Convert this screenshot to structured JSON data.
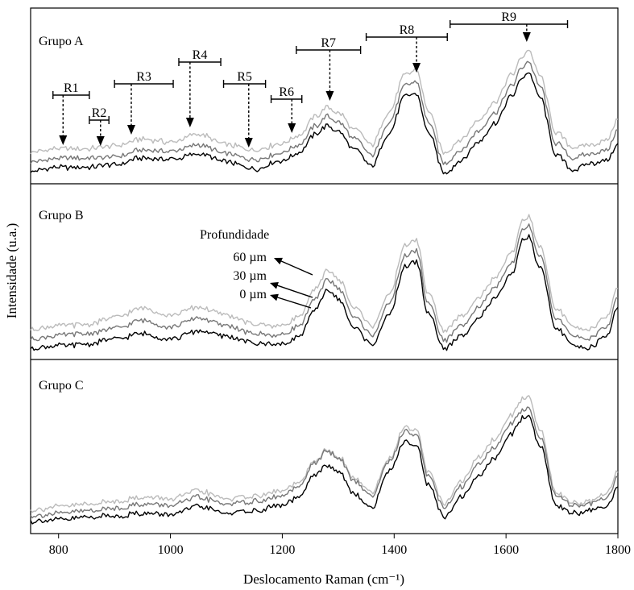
{
  "figure": {
    "xlabel": "Deslocamento Raman (cm⁻¹)",
    "ylabel": "Intensidade (u.a.)",
    "depth_title": "Profundidade",
    "depth_labels": [
      "60 µm",
      "30 µm",
      "0 µm"
    ],
    "colors": {
      "0um": "#000000",
      "30um": "#777777",
      "60um": "#bbbbbb",
      "axes": "#000000"
    }
  },
  "chart_data": {
    "type": "line",
    "xlabel": "Deslocamento Raman (cm⁻¹)",
    "ylabel": "Intensidade (u.a.)",
    "xlim": [
      750,
      1800
    ],
    "xticks": [
      800,
      1000,
      1200,
      1400,
      1600,
      1800
    ],
    "ylim": [
      0,
      1
    ],
    "grid": false,
    "legend": "annotated arrows, center-left of Grupo B panel",
    "series_names": [
      "0 µm",
      "30 µm",
      "60 µm"
    ],
    "panels": [
      {
        "name": "Grupo A",
        "x": [
          750,
          800,
          850,
          900,
          950,
          1000,
          1050,
          1100,
          1150,
          1200,
          1230,
          1260,
          1280,
          1300,
          1330,
          1360,
          1390,
          1420,
          1440,
          1460,
          1490,
          1520,
          1550,
          1580,
          1610,
          1630,
          1640,
          1660,
          1690,
          1720,
          1750,
          1780,
          1800
        ],
        "series": [
          {
            "name": "0 µm",
            "values": [
              0.02,
              0.05,
              0.05,
              0.07,
              0.12,
              0.11,
              0.15,
              0.09,
              0.04,
              0.1,
              0.16,
              0.3,
              0.36,
              0.32,
              0.18,
              0.06,
              0.3,
              0.58,
              0.6,
              0.32,
              0.01,
              0.1,
              0.24,
              0.38,
              0.58,
              0.72,
              0.76,
              0.58,
              0.14,
              0.03,
              0.08,
              0.1,
              0.22
            ]
          },
          {
            "name": "30 µm",
            "values": [
              0.09,
              0.12,
              0.12,
              0.13,
              0.18,
              0.17,
              0.22,
              0.15,
              0.11,
              0.16,
              0.22,
              0.36,
              0.43,
              0.39,
              0.26,
              0.14,
              0.38,
              0.66,
              0.69,
              0.4,
              0.08,
              0.18,
              0.32,
              0.46,
              0.66,
              0.8,
              0.84,
              0.66,
              0.23,
              0.12,
              0.15,
              0.18,
              0.33
            ]
          },
          {
            "name": "60 µm",
            "values": [
              0.16,
              0.19,
              0.19,
              0.21,
              0.26,
              0.24,
              0.3,
              0.22,
              0.18,
              0.23,
              0.29,
              0.43,
              0.5,
              0.46,
              0.33,
              0.22,
              0.46,
              0.74,
              0.78,
              0.48,
              0.16,
              0.26,
              0.4,
              0.54,
              0.74,
              0.88,
              0.93,
              0.74,
              0.31,
              0.2,
              0.22,
              0.25,
              0.41
            ]
          }
        ],
        "regions": [
          {
            "name": "R1",
            "from": 790,
            "to": 855,
            "peak": 808
          },
          {
            "name": "R2",
            "from": 855,
            "to": 890,
            "peak": 875
          },
          {
            "name": "R3",
            "from": 900,
            "to": 1005,
            "peak": 930
          },
          {
            "name": "R4",
            "from": 1015,
            "to": 1090,
            "peak": 1035
          },
          {
            "name": "R5",
            "from": 1095,
            "to": 1170,
            "peak": 1140
          },
          {
            "name": "R6",
            "from": 1180,
            "to": 1235,
            "peak": 1217
          },
          {
            "name": "R7",
            "from": 1225,
            "to": 1340,
            "peak": 1285
          },
          {
            "name": "R8",
            "from": 1350,
            "to": 1495,
            "peak": 1440
          },
          {
            "name": "R9",
            "from": 1500,
            "to": 1710,
            "peak": 1637
          }
        ]
      },
      {
        "name": "Grupo B",
        "x": [
          750,
          800,
          850,
          900,
          950,
          1000,
          1050,
          1100,
          1150,
          1200,
          1230,
          1260,
          1280,
          1300,
          1330,
          1360,
          1390,
          1420,
          1440,
          1460,
          1490,
          1520,
          1550,
          1580,
          1610,
          1630,
          1640,
          1660,
          1690,
          1720,
          1750,
          1780,
          1800
        ],
        "series": [
          {
            "name": "0 µm",
            "values": [
              0.01,
              0.03,
              0.04,
              0.08,
              0.12,
              0.08,
              0.14,
              0.1,
              0.05,
              0.04,
              0.1,
              0.3,
              0.45,
              0.38,
              0.16,
              0.04,
              0.25,
              0.62,
              0.66,
              0.28,
              0.01,
              0.1,
              0.24,
              0.38,
              0.56,
              0.82,
              0.84,
              0.62,
              0.16,
              0.03,
              0.02,
              0.1,
              0.32
            ]
          },
          {
            "name": "30 µm",
            "values": [
              0.08,
              0.11,
              0.12,
              0.16,
              0.22,
              0.17,
              0.24,
              0.18,
              0.12,
              0.11,
              0.18,
              0.38,
              0.53,
              0.46,
              0.24,
              0.11,
              0.33,
              0.7,
              0.74,
              0.36,
              0.07,
              0.18,
              0.32,
              0.46,
              0.64,
              0.9,
              0.92,
              0.7,
              0.24,
              0.1,
              0.09,
              0.17,
              0.4
            ]
          },
          {
            "name": "60 µm",
            "values": [
              0.15,
              0.18,
              0.19,
              0.24,
              0.31,
              0.26,
              0.32,
              0.26,
              0.19,
              0.18,
              0.25,
              0.45,
              0.6,
              0.53,
              0.31,
              0.18,
              0.4,
              0.78,
              0.82,
              0.43,
              0.14,
              0.25,
              0.39,
              0.53,
              0.72,
              0.97,
              0.99,
              0.77,
              0.31,
              0.17,
              0.16,
              0.24,
              0.47
            ]
          }
        ]
      },
      {
        "name": "Grupo C",
        "x": [
          750,
          800,
          850,
          900,
          950,
          1000,
          1050,
          1100,
          1150,
          1200,
          1230,
          1260,
          1280,
          1300,
          1330,
          1360,
          1390,
          1420,
          1440,
          1460,
          1490,
          1520,
          1550,
          1580,
          1610,
          1630,
          1640,
          1660,
          1690,
          1720,
          1750,
          1780,
          1800
        ],
        "series": [
          {
            "name": "0 µm",
            "values": [
              0.02,
              0.03,
              0.05,
              0.06,
              0.08,
              0.07,
              0.13,
              0.08,
              0.1,
              0.14,
              0.2,
              0.38,
              0.44,
              0.4,
              0.22,
              0.12,
              0.4,
              0.62,
              0.6,
              0.3,
              0.05,
              0.2,
              0.36,
              0.5,
              0.68,
              0.8,
              0.82,
              0.6,
              0.14,
              0.08,
              0.1,
              0.12,
              0.28
            ]
          },
          {
            "name": "30 µm",
            "values": [
              0.06,
              0.08,
              0.1,
              0.12,
              0.15,
              0.14,
              0.2,
              0.15,
              0.17,
              0.21,
              0.28,
              0.47,
              0.55,
              0.5,
              0.32,
              0.21,
              0.47,
              0.7,
              0.68,
              0.37,
              0.12,
              0.28,
              0.45,
              0.58,
              0.76,
              0.86,
              0.88,
              0.66,
              0.22,
              0.14,
              0.15,
              0.19,
              0.36
            ]
          },
          {
            "name": "60 µm",
            "values": [
              0.1,
              0.13,
              0.15,
              0.17,
              0.2,
              0.19,
              0.25,
              0.19,
              0.21,
              0.25,
              0.31,
              0.48,
              0.56,
              0.51,
              0.34,
              0.24,
              0.49,
              0.73,
              0.72,
              0.4,
              0.15,
              0.32,
              0.5,
              0.64,
              0.82,
              0.95,
              0.97,
              0.72,
              0.24,
              0.16,
              0.17,
              0.22,
              0.4
            ]
          }
        ]
      }
    ]
  }
}
